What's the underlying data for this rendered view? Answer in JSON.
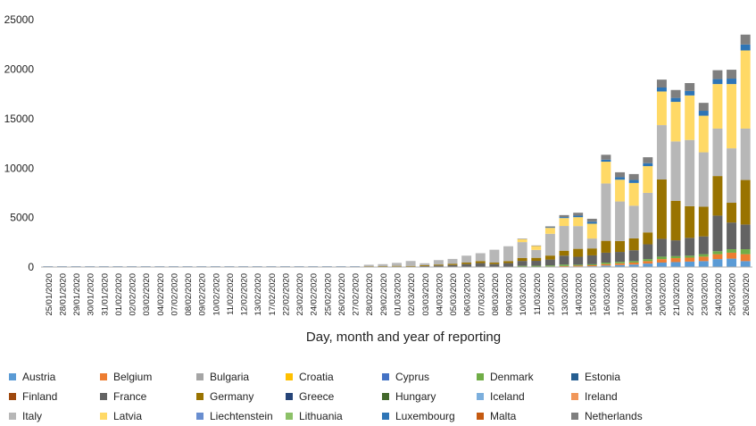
{
  "chart_data": {
    "type": "bar",
    "stacked": true,
    "title": "",
    "xlabel": "Day, month and year of reporting",
    "ylabel": "",
    "ylim": [
      0,
      27000
    ],
    "yticks": [
      0,
      5000,
      10000,
      15000,
      20000,
      25000
    ],
    "grid": false,
    "legend_position": "bottom",
    "categories": [
      "25/01/2020",
      "28/01/2020",
      "29/01/2020",
      "30/01/2020",
      "31/01/2020",
      "01/02/2020",
      "02/02/2020",
      "03/02/2020",
      "04/02/2020",
      "07/02/2020",
      "08/02/2020",
      "09/02/2020",
      "10/02/2020",
      "11/02/2020",
      "12/02/2020",
      "13/02/2020",
      "17/02/2020",
      "22/02/2020",
      "23/02/2020",
      "24/02/2020",
      "25/02/2020",
      "26/02/2020",
      "27/02/2020",
      "28/02/2020",
      "29/02/2020",
      "01/03/2020",
      "02/03/2020",
      "03/03/2020",
      "04/03/2020",
      "05/03/2020",
      "06/03/2020",
      "07/03/2020",
      "08/03/2020",
      "09/03/2020",
      "10/03/2020",
      "11/03/2020",
      "12/03/2020",
      "13/03/2020",
      "14/03/2020",
      "15/03/2020",
      "16/03/2020",
      "17/03/2020",
      "18/03/2020",
      "19/03/2020",
      "20/03/2020",
      "21/03/2020",
      "22/03/2020",
      "23/03/2020",
      "24/03/2020",
      "25/03/2020",
      "26/03/2020"
    ],
    "series": [
      {
        "name": "Austria",
        "color": "#5b9bd5",
        "values": [
          0,
          0,
          0,
          0,
          0,
          0,
          0,
          0,
          0,
          0,
          0,
          0,
          0,
          0,
          0,
          0,
          0,
          0,
          0,
          0,
          0,
          0,
          0,
          0,
          0,
          0,
          0,
          0,
          0,
          0,
          0,
          0,
          0,
          0,
          0,
          0,
          20,
          40,
          60,
          80,
          150,
          200,
          250,
          350,
          450,
          500,
          550,
          600,
          800,
          850,
          600
        ]
      },
      {
        "name": "Belgium",
        "color": "#ed7d31",
        "values": [
          0,
          0,
          0,
          0,
          0,
          0,
          0,
          0,
          0,
          0,
          0,
          0,
          0,
          0,
          0,
          0,
          0,
          0,
          0,
          0,
          0,
          0,
          0,
          0,
          0,
          0,
          0,
          0,
          0,
          0,
          0,
          0,
          0,
          0,
          20,
          30,
          40,
          60,
          80,
          100,
          150,
          180,
          200,
          250,
          350,
          400,
          400,
          450,
          500,
          600,
          700
        ]
      },
      {
        "name": "Bulgaria",
        "color": "#a5a5a5",
        "values": [
          0,
          0,
          0,
          0,
          0,
          0,
          0,
          0,
          0,
          0,
          0,
          0,
          0,
          0,
          0,
          0,
          0,
          0,
          0,
          0,
          0,
          0,
          0,
          0,
          0,
          0,
          0,
          0,
          0,
          0,
          0,
          0,
          0,
          0,
          0,
          0,
          0,
          0,
          0,
          0,
          0,
          0,
          0,
          0,
          0,
          0,
          0,
          0,
          0,
          0,
          0
        ]
      },
      {
        "name": "Croatia",
        "color": "#ffc000",
        "values": [
          0,
          0,
          0,
          0,
          0,
          0,
          0,
          0,
          0,
          0,
          0,
          0,
          0,
          0,
          0,
          0,
          0,
          0,
          0,
          0,
          0,
          0,
          0,
          0,
          0,
          0,
          0,
          0,
          0,
          0,
          0,
          0,
          0,
          0,
          0,
          0,
          0,
          0,
          0,
          0,
          0,
          0,
          0,
          0,
          0,
          0,
          0,
          0,
          0,
          0,
          0
        ]
      },
      {
        "name": "Cyprus",
        "color": "#4472c4",
        "values": [
          0,
          0,
          0,
          0,
          0,
          0,
          0,
          0,
          0,
          0,
          0,
          0,
          0,
          0,
          0,
          0,
          0,
          0,
          0,
          0,
          0,
          0,
          0,
          0,
          0,
          0,
          0,
          0,
          0,
          0,
          0,
          0,
          0,
          0,
          0,
          0,
          0,
          0,
          0,
          0,
          0,
          0,
          0,
          0,
          0,
          0,
          0,
          0,
          0,
          0,
          0
        ]
      },
      {
        "name": "Denmark",
        "color": "#70ad47",
        "values": [
          0,
          0,
          0,
          0,
          0,
          0,
          0,
          0,
          0,
          0,
          0,
          0,
          0,
          0,
          0,
          0,
          0,
          0,
          0,
          0,
          0,
          0,
          0,
          0,
          0,
          0,
          0,
          0,
          0,
          0,
          0,
          0,
          0,
          0,
          100,
          100,
          100,
          150,
          100,
          100,
          150,
          150,
          150,
          200,
          250,
          200,
          200,
          250,
          300,
          350,
          500
        ]
      },
      {
        "name": "Estonia",
        "color": "#255e91",
        "values": [
          0,
          0,
          0,
          0,
          0,
          0,
          0,
          0,
          0,
          0,
          0,
          0,
          0,
          0,
          0,
          0,
          0,
          0,
          0,
          0,
          0,
          0,
          0,
          0,
          0,
          0,
          0,
          0,
          0,
          0,
          0,
          0,
          0,
          0,
          0,
          0,
          0,
          0,
          0,
          0,
          0,
          0,
          0,
          0,
          0,
          0,
          0,
          0,
          0,
          0,
          0
        ]
      },
      {
        "name": "Finland",
        "color": "#9e480e",
        "values": [
          0,
          0,
          0,
          0,
          0,
          0,
          0,
          0,
          0,
          0,
          0,
          0,
          0,
          0,
          0,
          0,
          0,
          0,
          0,
          0,
          0,
          0,
          0,
          0,
          0,
          0,
          0,
          0,
          0,
          0,
          0,
          0,
          0,
          0,
          0,
          0,
          0,
          0,
          0,
          0,
          0,
          0,
          0,
          0,
          0,
          0,
          0,
          0,
          0,
          0,
          0
        ]
      },
      {
        "name": "France",
        "color": "#636363",
        "values": [
          0,
          0,
          0,
          0,
          0,
          0,
          0,
          0,
          0,
          0,
          0,
          0,
          0,
          0,
          0,
          0,
          0,
          0,
          0,
          0,
          0,
          0,
          0,
          40,
          50,
          60,
          50,
          100,
          150,
          200,
          300,
          400,
          300,
          400,
          500,
          500,
          600,
          900,
          800,
          900,
          1000,
          1000,
          1100,
          1500,
          1800,
          1600,
          1800,
          1800,
          3600,
          2700,
          2500
        ]
      },
      {
        "name": "Germany",
        "color": "#997300",
        "values": [
          0,
          0,
          0,
          0,
          0,
          0,
          0,
          0,
          0,
          0,
          0,
          0,
          0,
          0,
          0,
          0,
          0,
          0,
          0,
          0,
          0,
          0,
          0,
          40,
          40,
          60,
          60,
          80,
          100,
          120,
          150,
          200,
          150,
          200,
          300,
          300,
          400,
          500,
          800,
          700,
          1200,
          1100,
          1200,
          1200,
          6000,
          4000,
          3200,
          3000,
          4000,
          2000,
          4500
        ]
      },
      {
        "name": "Greece",
        "color": "#264478",
        "values": [
          0,
          0,
          0,
          0,
          0,
          0,
          0,
          0,
          0,
          0,
          0,
          0,
          0,
          0,
          0,
          0,
          0,
          0,
          0,
          0,
          0,
          0,
          0,
          0,
          0,
          0,
          0,
          0,
          0,
          0,
          0,
          0,
          0,
          0,
          0,
          0,
          0,
          0,
          0,
          0,
          0,
          0,
          0,
          0,
          0,
          0,
          0,
          0,
          0,
          0,
          0
        ]
      },
      {
        "name": "Hungary",
        "color": "#43682b",
        "values": [
          0,
          0,
          0,
          0,
          0,
          0,
          0,
          0,
          0,
          0,
          0,
          0,
          0,
          0,
          0,
          0,
          0,
          0,
          0,
          0,
          0,
          0,
          0,
          0,
          0,
          0,
          0,
          0,
          0,
          0,
          0,
          0,
          0,
          0,
          0,
          0,
          0,
          0,
          0,
          0,
          0,
          0,
          0,
          0,
          0,
          0,
          0,
          0,
          0,
          0,
          0
        ]
      },
      {
        "name": "Iceland",
        "color": "#7cafdd",
        "values": [
          0,
          0,
          0,
          0,
          0,
          0,
          0,
          0,
          0,
          0,
          0,
          0,
          0,
          0,
          0,
          0,
          0,
          0,
          0,
          0,
          0,
          0,
          0,
          0,
          0,
          0,
          0,
          0,
          0,
          0,
          0,
          0,
          0,
          0,
          0,
          0,
          0,
          0,
          0,
          0,
          0,
          0,
          0,
          0,
          0,
          0,
          0,
          0,
          0,
          0,
          0
        ]
      },
      {
        "name": "Ireland",
        "color": "#f1975a",
        "values": [
          0,
          0,
          0,
          0,
          0,
          0,
          0,
          0,
          0,
          0,
          0,
          0,
          0,
          0,
          0,
          0,
          0,
          0,
          0,
          0,
          0,
          0,
          0,
          0,
          0,
          0,
          0,
          0,
          0,
          0,
          0,
          0,
          0,
          0,
          0,
          0,
          0,
          0,
          0,
          0,
          0,
          0,
          0,
          0,
          0,
          0,
          0,
          0,
          0,
          0,
          0
        ]
      },
      {
        "name": "Italy",
        "color": "#b7b7b7",
        "values": [
          0,
          0,
          0,
          0,
          0,
          0,
          0,
          0,
          0,
          0,
          0,
          0,
          0,
          0,
          0,
          0,
          0,
          0,
          0,
          0,
          0,
          0,
          0,
          150,
          200,
          300,
          500,
          200,
          450,
          500,
          700,
          800,
          1300,
          1500,
          1600,
          800,
          2200,
          2500,
          2300,
          1000,
          5800,
          4000,
          3300,
          4000,
          5500,
          6000,
          6700,
          5500,
          4800,
          5500,
          5200
        ]
      },
      {
        "name": "Latvia",
        "color": "#ffd966",
        "values": [
          0,
          0,
          0,
          0,
          0,
          0,
          0,
          0,
          0,
          0,
          0,
          0,
          0,
          0,
          0,
          0,
          0,
          0,
          0,
          0,
          0,
          0,
          0,
          0,
          0,
          0,
          0,
          0,
          0,
          0,
          0,
          0,
          0,
          0,
          300,
          400,
          600,
          800,
          900,
          1500,
          2200,
          2200,
          2300,
          2700,
          3400,
          4000,
          4500,
          3700,
          4500,
          6500,
          7900
        ]
      },
      {
        "name": "Liechtenstein",
        "color": "#698ed0",
        "values": [
          0,
          0,
          0,
          0,
          0,
          0,
          0,
          0,
          0,
          0,
          0,
          0,
          0,
          0,
          0,
          0,
          0,
          0,
          0,
          0,
          0,
          0,
          0,
          0,
          0,
          0,
          0,
          0,
          0,
          0,
          0,
          0,
          0,
          0,
          0,
          0,
          0,
          0,
          0,
          0,
          0,
          0,
          0,
          0,
          0,
          0,
          0,
          0,
          0,
          0,
          0
        ]
      },
      {
        "name": "Lithuania",
        "color": "#8cc168",
        "values": [
          0,
          0,
          0,
          0,
          0,
          0,
          0,
          0,
          0,
          0,
          0,
          0,
          0,
          0,
          0,
          0,
          0,
          0,
          0,
          0,
          0,
          0,
          0,
          0,
          0,
          0,
          0,
          0,
          0,
          0,
          0,
          0,
          0,
          0,
          0,
          0,
          0,
          0,
          0,
          0,
          0,
          0,
          0,
          0,
          0,
          0,
          0,
          0,
          0,
          0,
          0
        ]
      },
      {
        "name": "Luxembourg",
        "color": "#2e75b6",
        "values": [
          0,
          0,
          0,
          0,
          0,
          0,
          0,
          0,
          0,
          0,
          0,
          0,
          0,
          0,
          0,
          0,
          0,
          0,
          0,
          0,
          0,
          0,
          0,
          0,
          0,
          0,
          0,
          0,
          0,
          0,
          0,
          0,
          0,
          0,
          0,
          0,
          50,
          100,
          150,
          200,
          200,
          250,
          300,
          300,
          400,
          400,
          450,
          500,
          500,
          550,
          600
        ]
      },
      {
        "name": "Malta",
        "color": "#c55a11",
        "values": [
          0,
          0,
          0,
          0,
          0,
          0,
          0,
          0,
          0,
          0,
          0,
          0,
          0,
          0,
          0,
          0,
          0,
          0,
          0,
          0,
          0,
          0,
          0,
          0,
          0,
          0,
          0,
          0,
          0,
          0,
          0,
          0,
          0,
          0,
          0,
          0,
          0,
          0,
          0,
          0,
          0,
          0,
          0,
          0,
          0,
          0,
          0,
          0,
          0,
          0,
          0
        ]
      },
      {
        "name": "Netherlands",
        "color": "#7f7f7f",
        "values": [
          0,
          0,
          0,
          0,
          0,
          0,
          0,
          0,
          0,
          0,
          0,
          0,
          0,
          0,
          0,
          0,
          0,
          0,
          0,
          0,
          0,
          0,
          0,
          0,
          0,
          0,
          0,
          0,
          0,
          0,
          0,
          0,
          0,
          0,
          50,
          50,
          100,
          200,
          300,
          300,
          500,
          500,
          600,
          600,
          800,
          800,
          800,
          800,
          900,
          900,
          1000
        ]
      },
      {
        "name": "",
        "color": "#1f4e79",
        "values": [
          0,
          0,
          0,
          0,
          0,
          0,
          0,
          0,
          0,
          0,
          0,
          0,
          0,
          0,
          0,
          0,
          0,
          0,
          0,
          0,
          0,
          0,
          0,
          0,
          0,
          0,
          0,
          0,
          0,
          0,
          0,
          0,
          0,
          0,
          0,
          0,
          0,
          0,
          0,
          0,
          0,
          0,
          0,
          0,
          0,
          0,
          0,
          0,
          0,
          0,
          0
        ]
      }
    ]
  },
  "legend_rows": [
    [
      "Austria",
      "Belgium",
      "Bulgaria",
      "Croatia",
      "Cyprus",
      "Denmark",
      "Estonia"
    ],
    [
      "Finland",
      "France",
      "Germany",
      "Greece",
      "Hungary",
      "Iceland",
      "Ireland"
    ],
    [
      "Italy",
      "Latvia",
      "Liechtenstein",
      "Lithuania",
      "Luxembourg",
      "Malta",
      "Netherlands"
    ]
  ]
}
